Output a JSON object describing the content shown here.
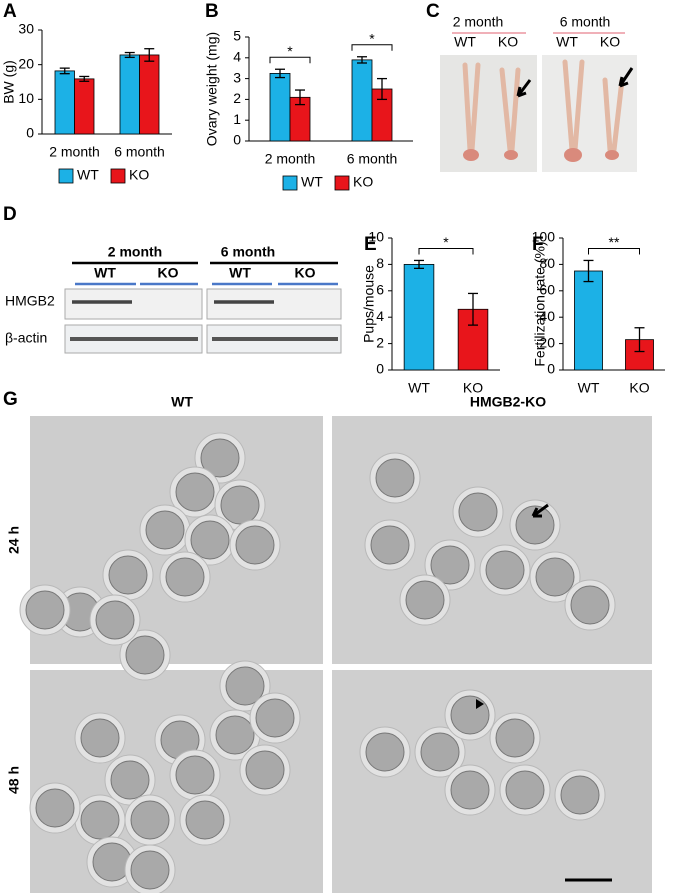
{
  "panel_labels": [
    "A",
    "B",
    "C",
    "D",
    "E",
    "F",
    "G"
  ],
  "chart_data": [
    {
      "type": "bar",
      "ylabel": "BW (g)",
      "categories": [
        "2 month",
        "6 month"
      ],
      "series": [
        {
          "name": "WT",
          "color": "#1cb1e6",
          "values": [
            18.2,
            22.8
          ],
          "errors": [
            0.8,
            0.7
          ]
        },
        {
          "name": "KO",
          "color": "#e8151b",
          "values": [
            15.9,
            22.8
          ],
          "errors": [
            0.7,
            1.8
          ]
        }
      ],
      "ylim": [
        0,
        30
      ],
      "yticks": [
        0,
        10,
        20,
        30
      ],
      "legend": "bottom"
    },
    {
      "type": "bar",
      "ylabel": "Ovary weight (mg)",
      "categories": [
        "2 month",
        "6 month"
      ],
      "series": [
        {
          "name": "WT",
          "color": "#1cb1e6",
          "values": [
            3.25,
            3.9
          ],
          "errors": [
            0.2,
            0.15
          ]
        },
        {
          "name": "KO",
          "color": "#e8151b",
          "values": [
            2.1,
            2.5
          ],
          "errors": [
            0.35,
            0.5
          ]
        }
      ],
      "ylim": [
        0,
        5
      ],
      "yticks": [
        0,
        1,
        2,
        3,
        4,
        5
      ],
      "legend": "bottom",
      "annotations": [
        "*",
        "*"
      ]
    },
    {
      "type": "bar",
      "ylabel": "Pups/mouse",
      "categories": [
        "WT",
        "KO"
      ],
      "values": [
        8.0,
        4.6
      ],
      "errors": [
        0.3,
        1.2
      ],
      "colors": [
        "#1cb1e6",
        "#e8151b"
      ],
      "ylim": [
        0,
        10
      ],
      "yticks": [
        0,
        2,
        4,
        6,
        8,
        10
      ],
      "annotations": [
        "*"
      ]
    },
    {
      "type": "bar",
      "ylabel": "Fertilization rate (%)",
      "categories": [
        "WT",
        "KO"
      ],
      "values": [
        75,
        23
      ],
      "errors": [
        8,
        9
      ],
      "colors": [
        "#1cb1e6",
        "#e8151b"
      ],
      "ylim": [
        0,
        100
      ],
      "yticks": [
        0,
        20,
        40,
        60,
        80,
        100
      ],
      "annotations": [
        "**"
      ]
    }
  ],
  "panel_c": {
    "groups": [
      {
        "title": "2 month",
        "lanes": [
          "WT",
          "KO"
        ]
      },
      {
        "title": "6 month",
        "lanes": [
          "WT",
          "KO"
        ]
      }
    ]
  },
  "panel_d": {
    "groups": [
      {
        "title": "2 month",
        "lanes": [
          "WT",
          "KO"
        ]
      },
      {
        "title": "6 month",
        "lanes": [
          "WT",
          "KO"
        ]
      }
    ],
    "rows": [
      "HMGB2",
      "β-actin"
    ]
  },
  "panel_g": {
    "columns": [
      "WT",
      "HMGB2-KO"
    ],
    "rows": [
      "24 h",
      "48 h"
    ]
  }
}
